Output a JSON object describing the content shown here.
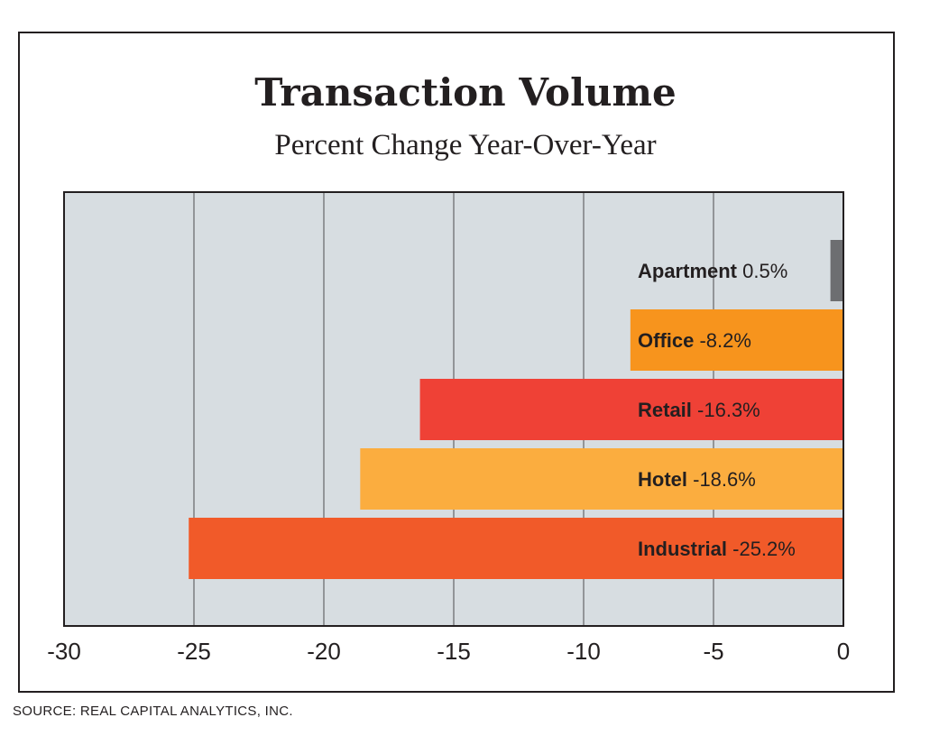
{
  "chart_data": {
    "type": "bar",
    "orientation": "horizontal",
    "title": "Transaction Volume",
    "subtitle": "Percent Change Year-Over-Year",
    "source": "SOURCE: REAL CAPITAL ANALYTICS, INC.",
    "categories": [
      "Apartment",
      "Office",
      "Retail",
      "Hotel",
      "Industrial"
    ],
    "values": [
      0.5,
      -8.2,
      -16.3,
      -18.6,
      -25.2
    ],
    "value_labels": [
      "0.5%",
      "-8.2%",
      "-16.3%",
      "-18.6%",
      "-25.2%"
    ],
    "colors": [
      "#6d6e71",
      "#f7941d",
      "#ef4136",
      "#fbad3f",
      "#f15a29"
    ],
    "xlim": [
      -30,
      0
    ],
    "xticks": [
      -30,
      -25,
      -20,
      -15,
      -10,
      -5,
      0
    ],
    "xtick_labels": [
      "-30",
      "-25",
      "-20",
      "-15",
      "-10",
      "-5",
      "0"
    ],
    "grid": true,
    "plot_background": "#d7dde1"
  }
}
